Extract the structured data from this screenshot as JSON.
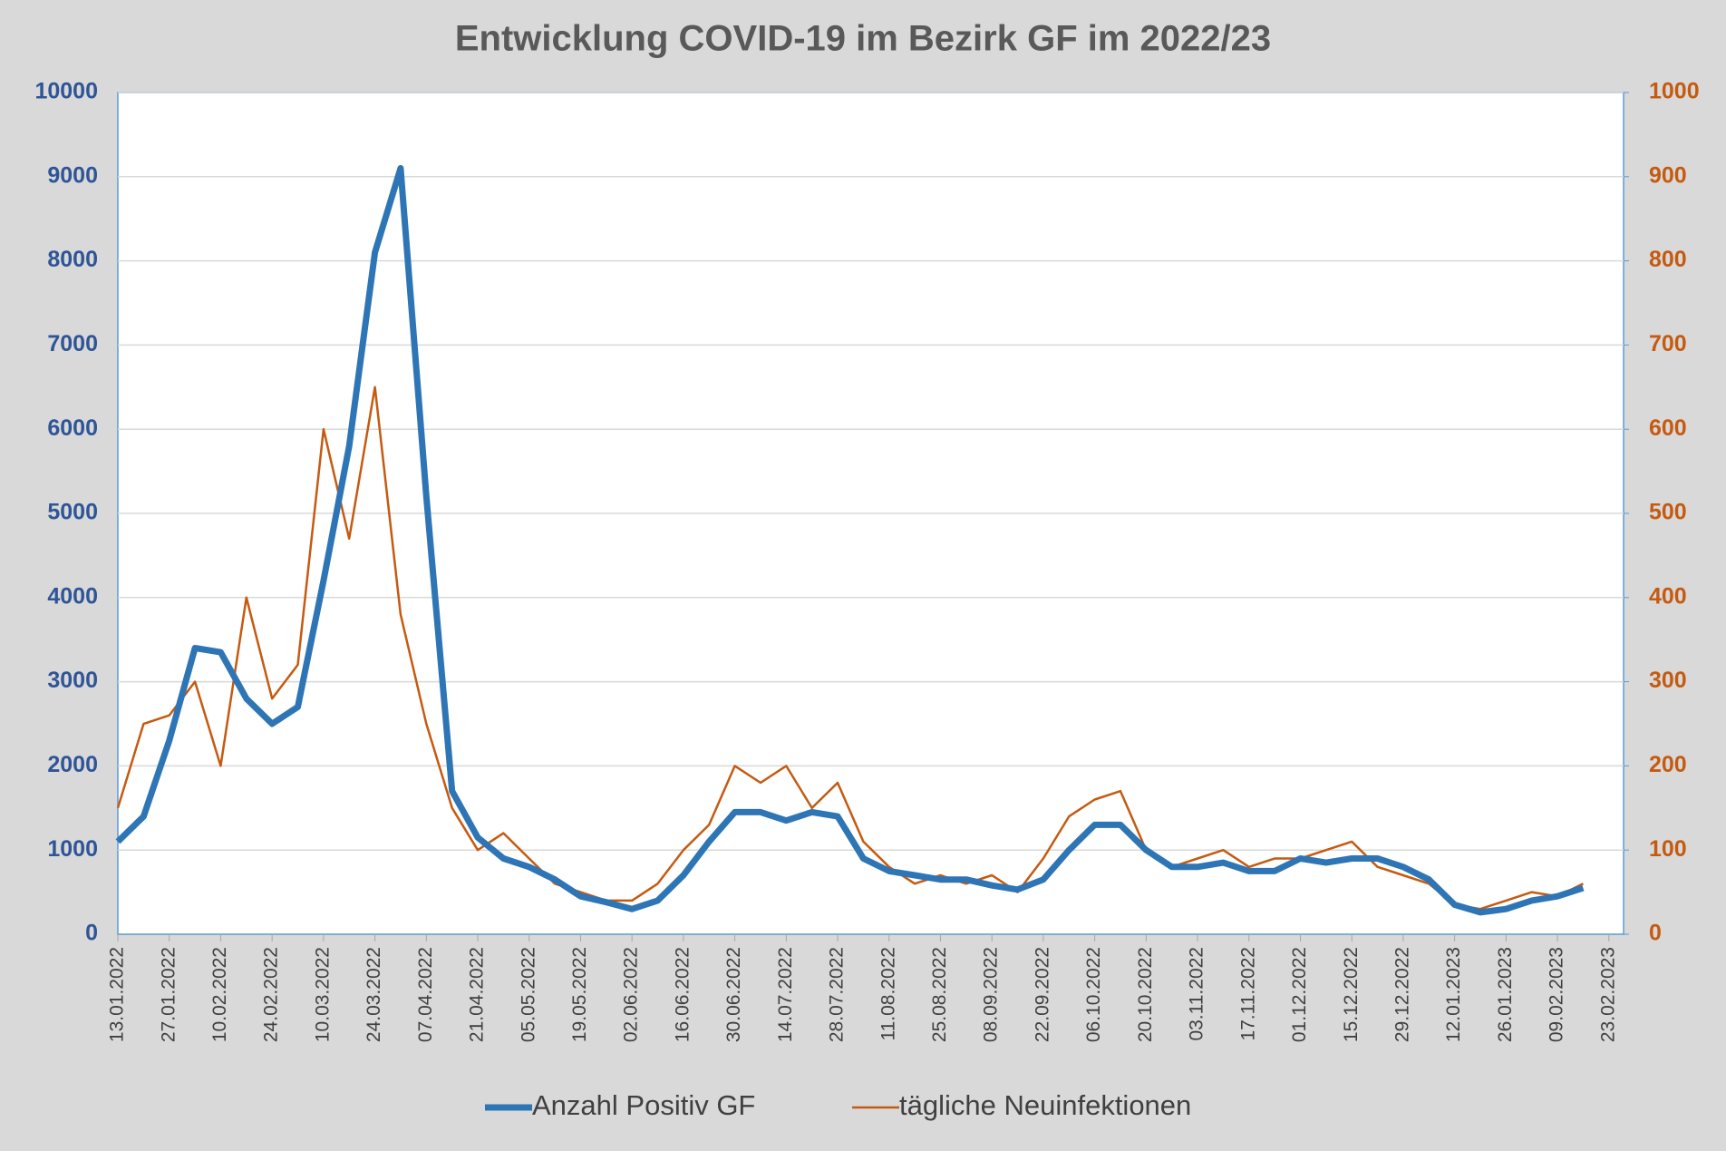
{
  "chart_data": {
    "type": "line",
    "title": "Entwicklung COVID-19 im Bezirk GF im 2022/23",
    "x": [
      "13.01.2022",
      "20.01.2022",
      "27.01.2022",
      "03.02.2022",
      "10.02.2022",
      "17.02.2022",
      "24.02.2022",
      "03.03.2022",
      "10.03.2022",
      "17.03.2022",
      "24.03.2022",
      "31.03.2022",
      "07.04.2022",
      "14.04.2022",
      "21.04.2022",
      "28.04.2022",
      "05.05.2022",
      "12.05.2022",
      "19.05.2022",
      "26.05.2022",
      "02.06.2022",
      "09.06.2022",
      "16.06.2022",
      "23.06.2022",
      "30.06.2022",
      "07.07.2022",
      "14.07.2022",
      "21.07.2022",
      "28.07.2022",
      "04.08.2022",
      "11.08.2022",
      "18.08.2022",
      "25.08.2022",
      "01.09.2022",
      "08.09.2022",
      "15.09.2022",
      "22.09.2022",
      "29.09.2022",
      "06.10.2022",
      "13.10.2022",
      "20.10.2022",
      "27.10.2022",
      "03.11.2022",
      "10.11.2022",
      "17.11.2022",
      "24.11.2022",
      "01.12.2022",
      "08.12.2022",
      "15.12.2022",
      "22.12.2022",
      "29.12.2022",
      "05.01.2023",
      "12.01.2023",
      "19.01.2023",
      "26.01.2023",
      "02.02.2023",
      "09.02.2023",
      "16.02.2023"
    ],
    "series": [
      {
        "name": "Anzahl Positiv GF",
        "color": "#2e75b6",
        "axis": "y",
        "values": [
          1100,
          1400,
          2300,
          3400,
          3350,
          2800,
          2500,
          2700,
          4200,
          5800,
          8100,
          9100,
          5200,
          1700,
          1150,
          900,
          800,
          650,
          450,
          380,
          300,
          400,
          700,
          1100,
          1450,
          1450,
          1350,
          1450,
          1400,
          900,
          750,
          700,
          650,
          650,
          580,
          530,
          650,
          1000,
          1300,
          1300,
          1000,
          800,
          800,
          850,
          750,
          750,
          900,
          850,
          900,
          900,
          800,
          650,
          350,
          260,
          300,
          400,
          450,
          550
        ]
      },
      {
        "name": "tägliche Neuinfektionen",
        "color": "#c55a11",
        "axis": "y2",
        "values": [
          150,
          250,
          260,
          300,
          200,
          400,
          280,
          320,
          600,
          470,
          650,
          380,
          250,
          150,
          100,
          120,
          90,
          60,
          50,
          40,
          40,
          60,
          100,
          130,
          200,
          180,
          200,
          150,
          180,
          110,
          80,
          60,
          70,
          60,
          70,
          50,
          90,
          140,
          160,
          170,
          100,
          80,
          90,
          100,
          80,
          90,
          90,
          100,
          110,
          80,
          70,
          60,
          35,
          30,
          40,
          50,
          45,
          60
        ]
      }
    ],
    "xlim": [
      "13.01.2022",
      "27.02.2023"
    ],
    "xticks": [
      "13.01.2022",
      "27.01.2022",
      "10.02.2022",
      "24.02.2022",
      "10.03.2022",
      "24.03.2022",
      "07.04.2022",
      "21.04.2022",
      "05.05.2022",
      "19.05.2022",
      "02.06.2022",
      "16.06.2022",
      "30.06.2022",
      "14.07.2022",
      "28.07.2022",
      "11.08.2022",
      "25.08.2022",
      "08.09.2022",
      "22.09.2022",
      "06.10.2022",
      "20.10.2022",
      "03.11.2022",
      "17.11.2022",
      "01.12.2022",
      "15.12.2022",
      "29.12.2022",
      "12.01.2023",
      "26.01.2023",
      "09.02.2023",
      "23.02.2023"
    ],
    "ylim": [
      0,
      10000
    ],
    "yticks": [
      0,
      1000,
      2000,
      3000,
      4000,
      5000,
      6000,
      7000,
      8000,
      9000,
      10000
    ],
    "y2lim": [
      0,
      1000
    ],
    "y2ticks": [
      0,
      100,
      200,
      300,
      400,
      500,
      600,
      700,
      800,
      900,
      1000
    ],
    "grid": true
  }
}
